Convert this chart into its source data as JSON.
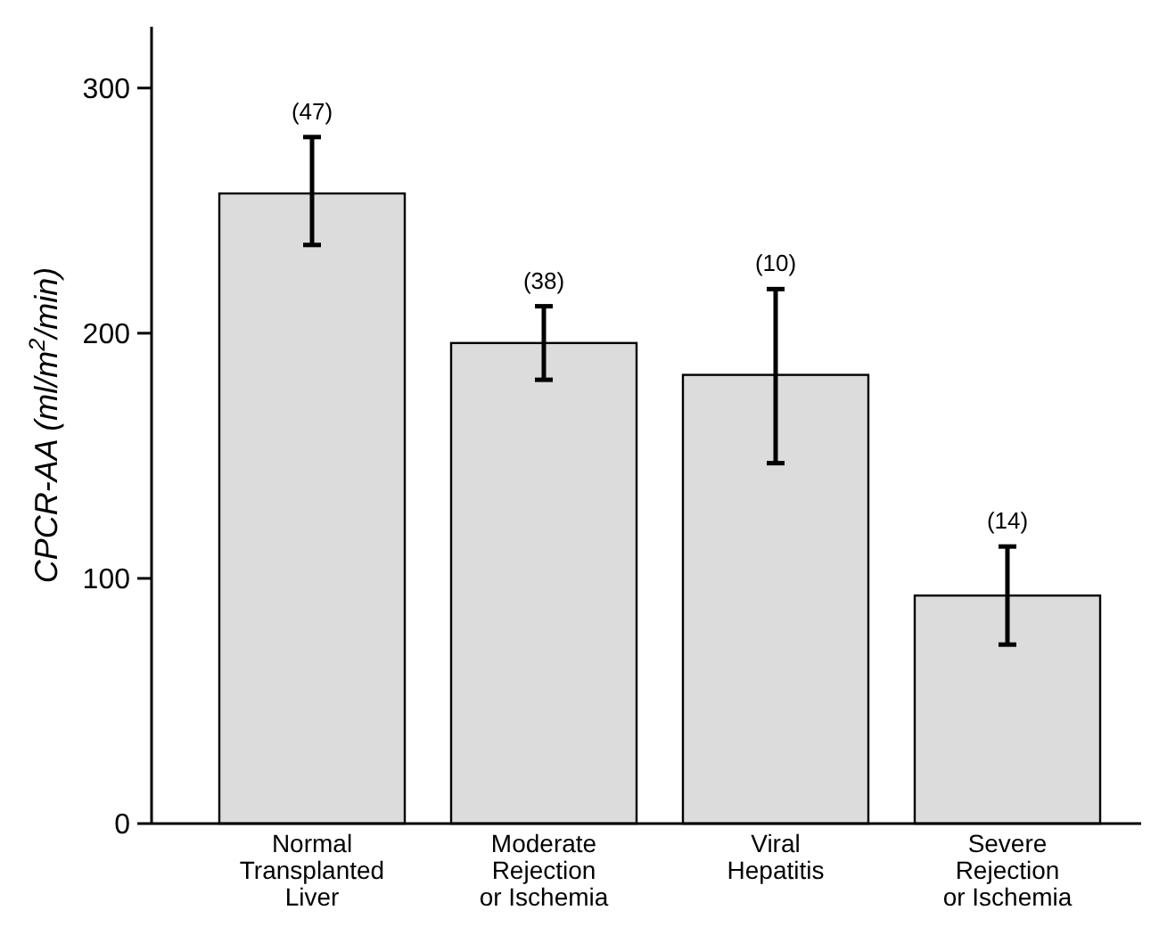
{
  "chart_data": {
    "type": "bar",
    "ylabel": "CPCR-AA (ml/m$^{2}$/min)",
    "categories": [
      "Normal\nTransplanted\nLiver",
      "Moderate\nRejection\nor Ischemia",
      "Viral\nHepatitis",
      "Severe\nRejection\nor Ischemia"
    ],
    "values": [
      257,
      196,
      183,
      93
    ],
    "errors": [
      [
        236,
        280
      ],
      [
        181,
        211
      ],
      [
        147,
        218
      ],
      [
        73,
        113
      ]
    ],
    "color": "#dcdcdc",
    "ylim": [
      0,
      325
    ],
    "yticks": [
      0,
      100,
      200,
      300
    ],
    "grid": false,
    "annotations": [
      {
        "text": "(47)",
        "x": "Normal\nTransplanted\nLiver",
        "y": 280
      },
      {
        "text": "(38)",
        "x": "Moderate\nRejection\nor Ischemia",
        "y": 211
      },
      {
        "text": "(10)",
        "x": "Viral\nHepatitis",
        "y": 218
      },
      {
        "text": "(14)",
        "x": "Severe\nRejection\nor Ischemia",
        "y": 113
      }
    ]
  }
}
